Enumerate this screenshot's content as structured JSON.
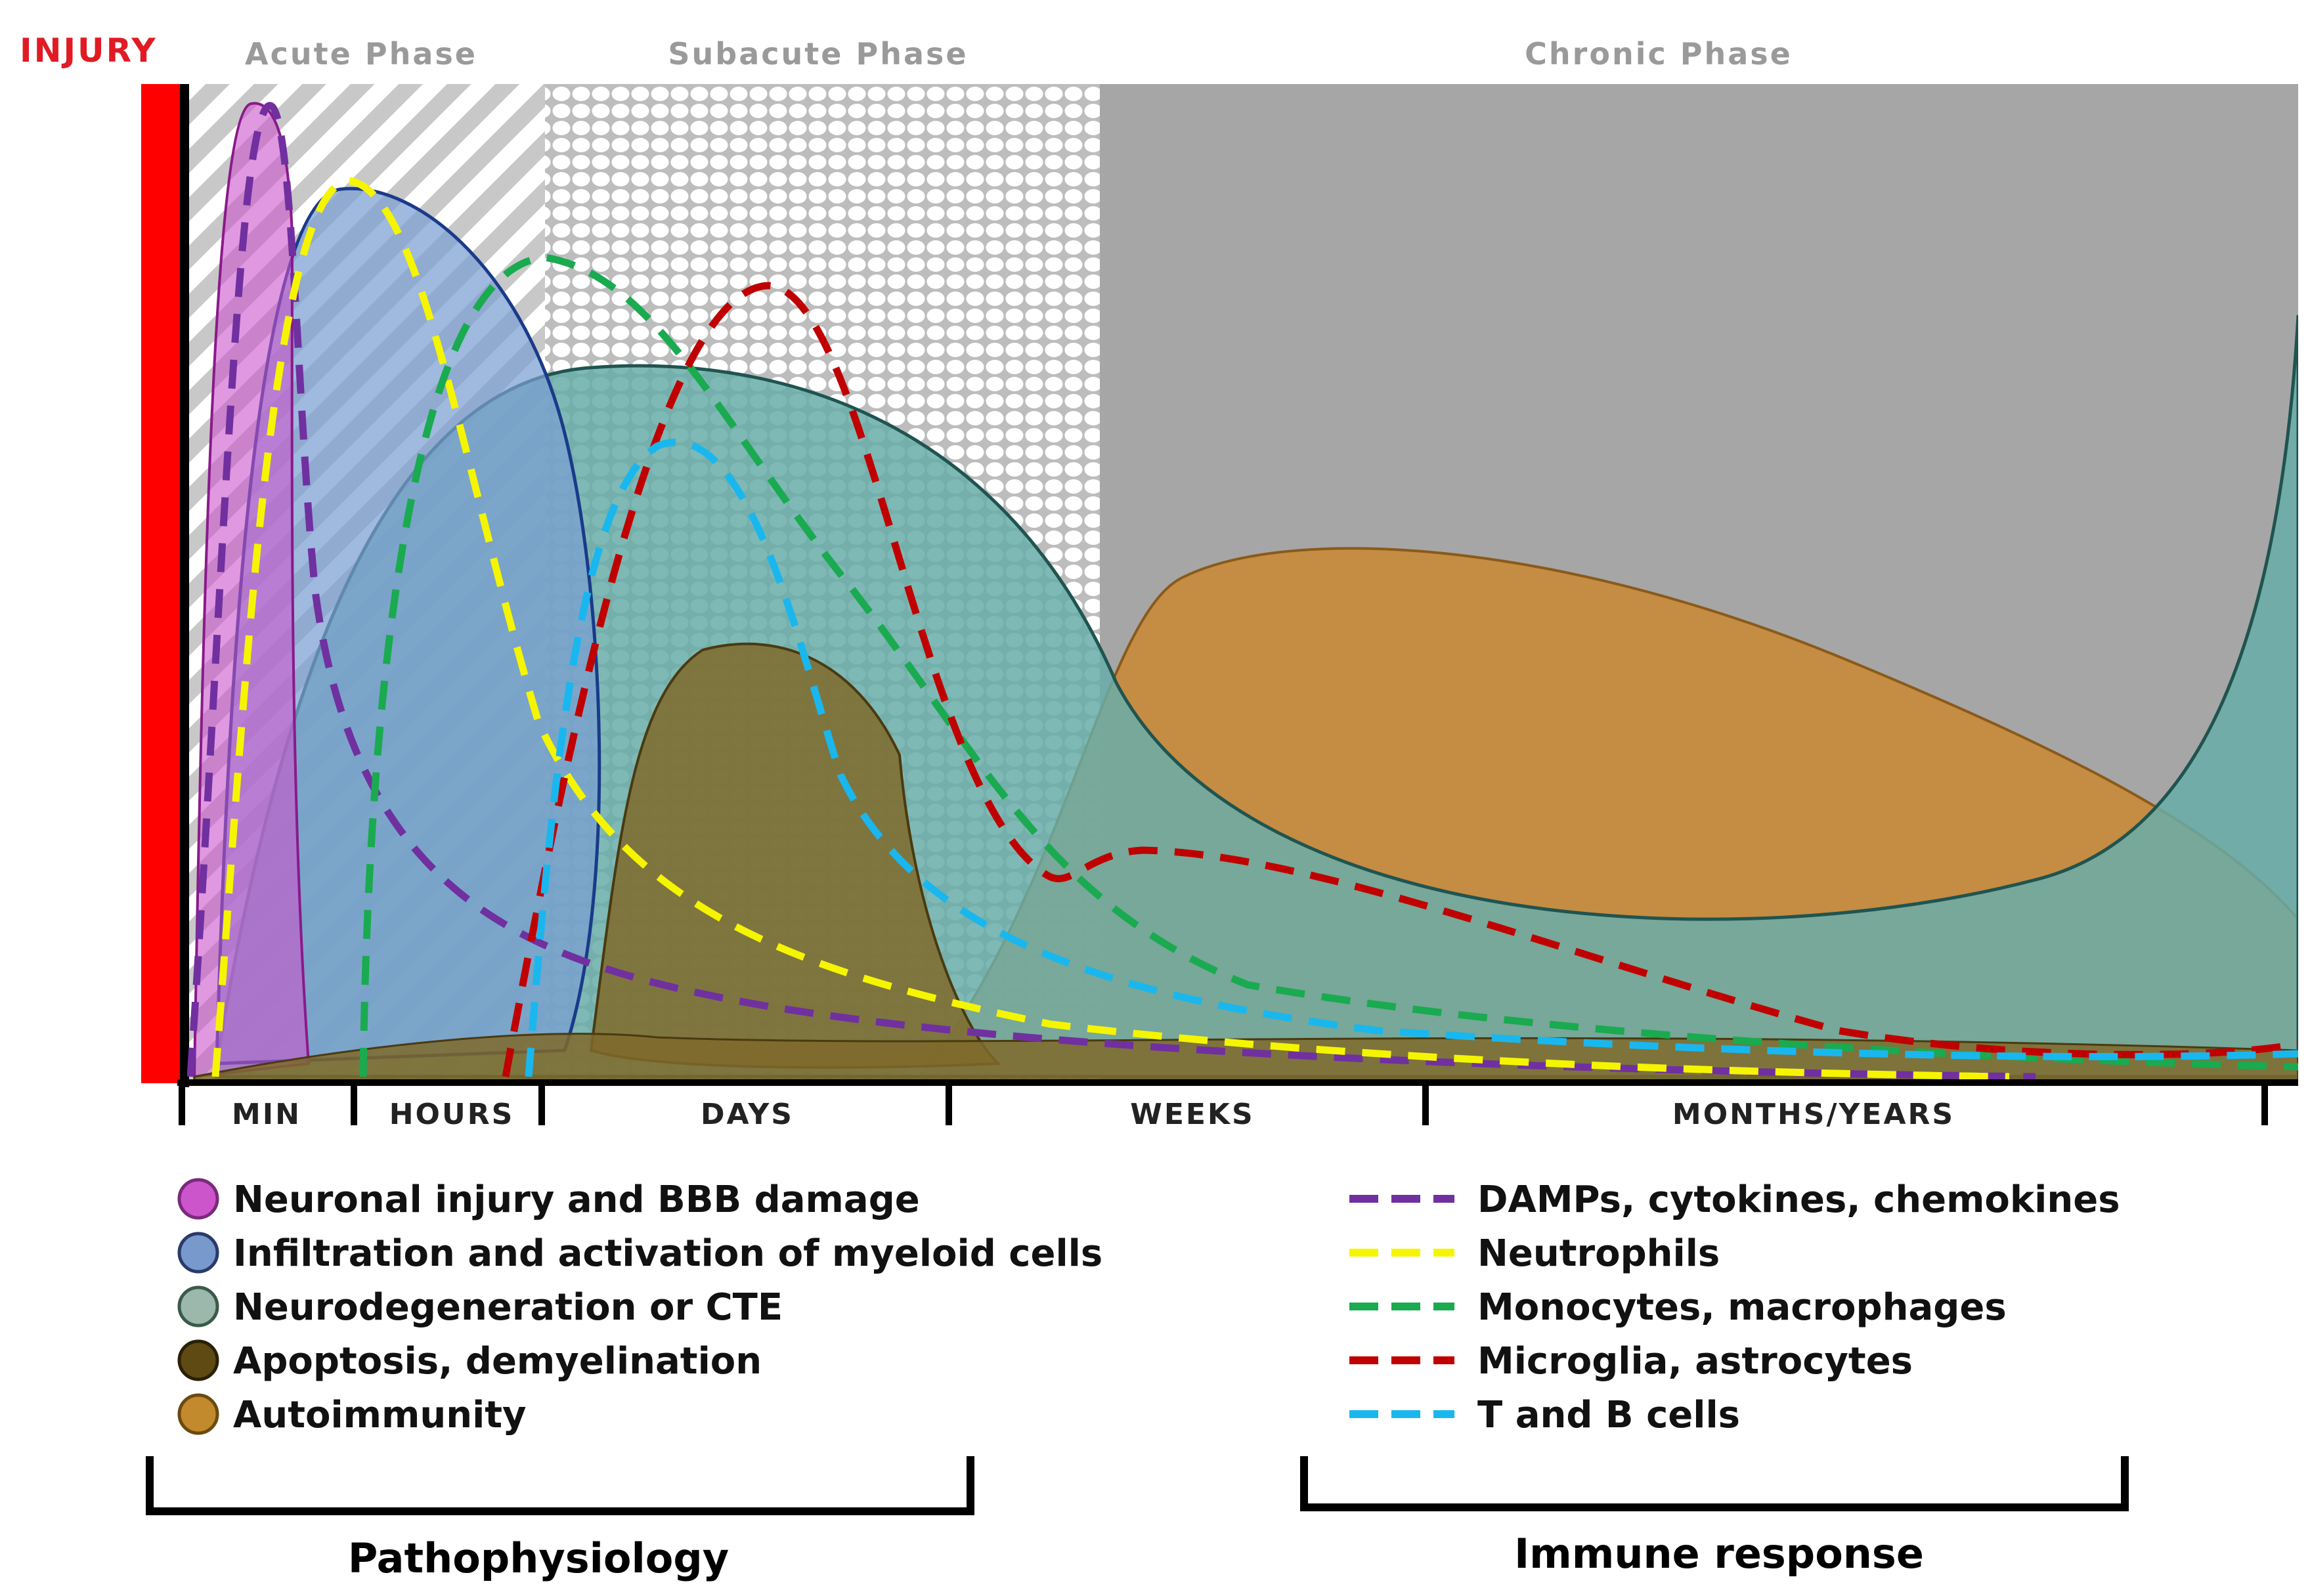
{
  "injury_label": "INJURY",
  "phases": [
    {
      "label": "Acute Phase"
    },
    {
      "label": "Subacute Phase"
    },
    {
      "label": "Chronic Phase"
    }
  ],
  "timeline": [
    "MIN",
    "HOURS",
    "DAYS",
    "WEEKS",
    "MONTHS/YEARS"
  ],
  "pathophysiology": {
    "title": "Pathophysiology",
    "items": [
      {
        "label": "Neuronal injury and BBB damage",
        "color": "#cc55cc"
      },
      {
        "label": "Infiltration and activation of myeloid cells",
        "color": "#7799cc"
      },
      {
        "label": "Neurodegeneration or CTE",
        "color": "#9cb8ac"
      },
      {
        "label": "Apoptosis, demyelination",
        "color": "#5e4a12"
      },
      {
        "label": "Autoimmunity",
        "color": "#c28a2c"
      }
    ]
  },
  "immune": {
    "title": "Immune response",
    "items": [
      {
        "label": "DAMPs, cytokines, chemokines",
        "color": "#7030a0"
      },
      {
        "label": "Neutrophils",
        "color": "#f5f500"
      },
      {
        "label": "Monocytes, macrophages",
        "color": "#1aaa50"
      },
      {
        "label": "Microglia, astrocytes",
        "color": "#c00000"
      },
      {
        "label": "T and B cells",
        "color": "#19b7ee"
      }
    ]
  },
  "colors": {
    "injury": "#ff0000",
    "chronic_bg": "#a6a6a6",
    "neurodegeneration_fill": "#69ada8",
    "apoptosis_fill": "#7f6a2a",
    "autoimmunity_fill": "#c98a38"
  }
}
